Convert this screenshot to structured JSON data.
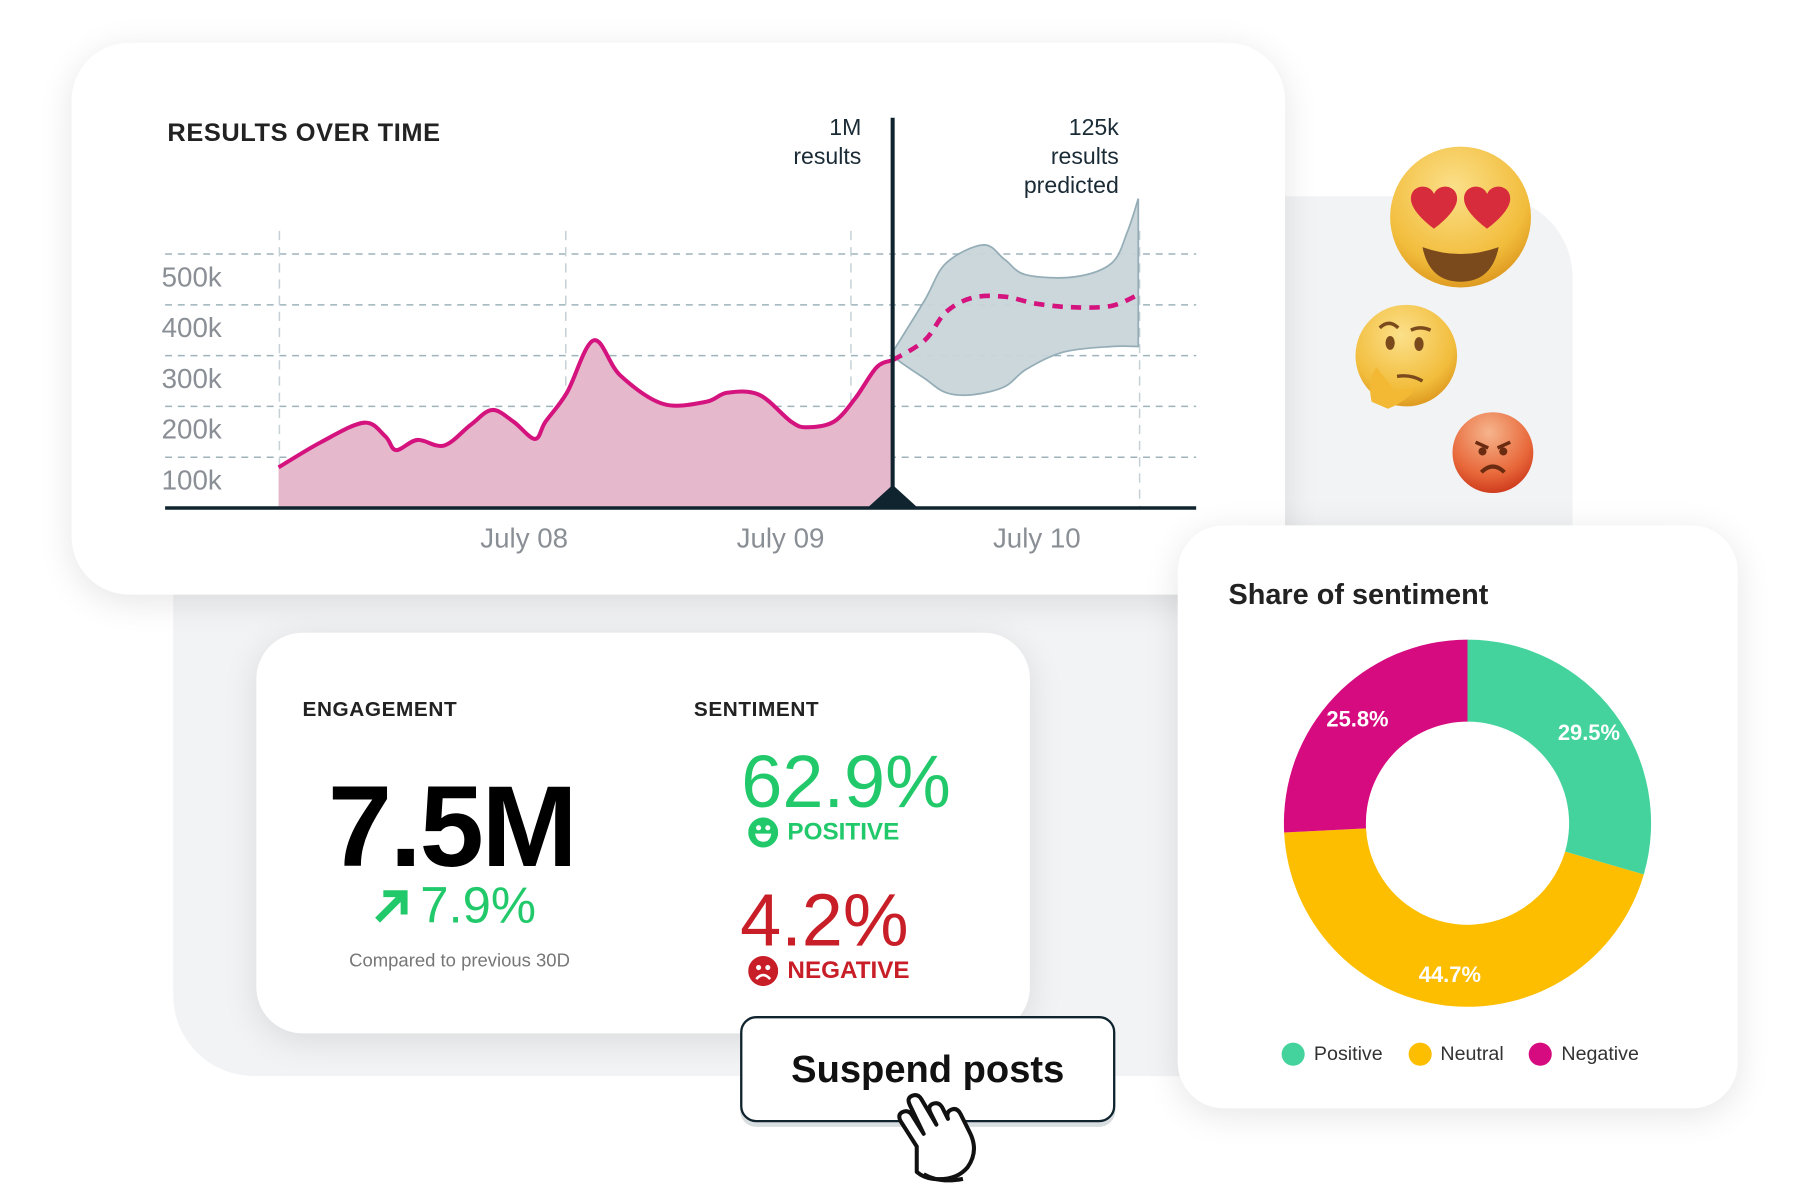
{
  "results_card": {
    "title": "RESULTS OVER TIME"
  },
  "chart_data": [
    {
      "type": "area",
      "title": "RESULTS OVER TIME",
      "y_ticks": [
        "100k",
        "200k",
        "300k",
        "400k",
        "500k"
      ],
      "y_tick_values": [
        100,
        200,
        300,
        400,
        500
      ],
      "y_unit": "thousands of results",
      "x_ticks": [
        {
          "label": "July 08",
          "t": "07-08 00:00"
        },
        {
          "label": "July 09",
          "t": "07-09 00:00"
        },
        {
          "label": "July 10",
          "t": "07-10 00:00"
        }
      ],
      "grid": true,
      "series": [
        {
          "kind": "actual",
          "color": "#d4137f",
          "fill": "#e5b8cb",
          "points": [
            [
              "07-07 01:00",
              80
            ],
            [
              "07-07 05:00",
              130
            ],
            [
              "07-07 09:00",
              168
            ],
            [
              "07-07 11:00",
              141
            ],
            [
              "07-07 12:00",
              114
            ],
            [
              "07-07 14:00",
              134
            ],
            [
              "07-07 16:30",
              123
            ],
            [
              "07-07 19:00",
              164
            ],
            [
              "07-07 21:00",
              193
            ],
            [
              "07-07 23:00",
              170
            ],
            [
              "07-08 01:00",
              136
            ],
            [
              "07-08 02:00",
              170
            ],
            [
              "07-08 04:00",
              227
            ],
            [
              "07-08 06:30",
              330
            ],
            [
              "07-08 09:00",
              261
            ],
            [
              "07-08 13:00",
              205
            ],
            [
              "07-08 17:00",
              209
            ],
            [
              "07-08 19:00",
              227
            ],
            [
              "07-08 22:00",
              223
            ],
            [
              "07-09 01:00",
              170
            ],
            [
              "07-09 02:30",
              159
            ],
            [
              "07-09 05:00",
              170
            ],
            [
              "07-09 07:00",
              216
            ],
            [
              "07-09 09:00",
              277
            ],
            [
              "07-09 10:30",
              291
            ]
          ]
        },
        {
          "kind": "predicted",
          "color": "#d4137f",
          "dashed": true,
          "points": [
            [
              "07-09 10:30",
              291
            ],
            [
              "07-09 13:30",
              330
            ],
            [
              "07-09 15:30",
              386
            ],
            [
              "07-09 18:00",
              414
            ],
            [
              "07-09 21:00",
              416
            ],
            [
              "07-10 00:00",
              402
            ],
            [
              "07-10 03:30",
              395
            ],
            [
              "07-10 07:00",
              398
            ],
            [
              "07-10 09:30",
              420
            ]
          ]
        },
        {
          "kind": "prediction-band",
          "color": "#c9d5da",
          "stroke": "#8fa9b3",
          "upper": [
            [
              "07-09 10:30",
              307
            ],
            [
              "07-09 13:30",
              409
            ],
            [
              "07-09 15:30",
              482
            ],
            [
              "07-09 19:00",
              518
            ],
            [
              "07-09 21:00",
              489
            ],
            [
              "07-09 23:00",
              459
            ],
            [
              "07-10 03:30",
              455
            ],
            [
              "07-10 07:00",
              482
            ],
            [
              "07-10 08:30",
              545
            ],
            [
              "07-10 09:30",
              609
            ]
          ],
          "lower": [
            [
              "07-10 09:30",
              318
            ],
            [
              "07-10 07:00",
              318
            ],
            [
              "07-10 02:30",
              307
            ],
            [
              "07-09 23:00",
              273
            ],
            [
              "07-09 21:00",
              239
            ],
            [
              "07-09 18:00",
              223
            ],
            [
              "07-09 15:30",
              227
            ],
            [
              "07-09 13:30",
              255
            ],
            [
              "07-09 11:00",
              291
            ],
            [
              "07-09 10:30",
              307
            ]
          ]
        }
      ],
      "marker": {
        "t": "07-09 10:30",
        "color": "#10242f"
      },
      "annotations": {
        "actual": [
          "1M",
          "results"
        ],
        "predicted": [
          "125k",
          "results",
          "predicted"
        ]
      }
    },
    {
      "type": "pie",
      "title": "Share of sentiment",
      "slices": [
        {
          "name": "Positive",
          "value": 29.5,
          "label": "29.5%",
          "color": "#45d39d"
        },
        {
          "name": "Neutral",
          "value": 44.7,
          "label": "44.7%",
          "color": "#fdbe00"
        },
        {
          "name": "Negative",
          "value": 25.8,
          "label": "25.8%",
          "color": "#d60b80"
        }
      ],
      "legend": "bottom"
    }
  ],
  "engagement": {
    "label": "ENGAGEMENT",
    "value": "7.5M",
    "change": "7.9%",
    "change_icon": "arrow-up-right-icon",
    "note": "Compared to previous 30D",
    "color": "#22c96b"
  },
  "sentiment": {
    "label": "SENTIMENT",
    "positive": {
      "value": "62.9%",
      "label": "POSITIVE",
      "icon": "smiley-icon",
      "color": "#22c96b"
    },
    "negative": {
      "value": "4.2%",
      "label": "NEGATIVE",
      "icon": "frown-icon",
      "color": "#c81e28"
    }
  },
  "action": {
    "label": "Suspend posts",
    "cursor": "hand-pointer-icon"
  },
  "emojis": [
    "heart-eyes-emoji",
    "thinking-emoji",
    "angry-emoji"
  ]
}
